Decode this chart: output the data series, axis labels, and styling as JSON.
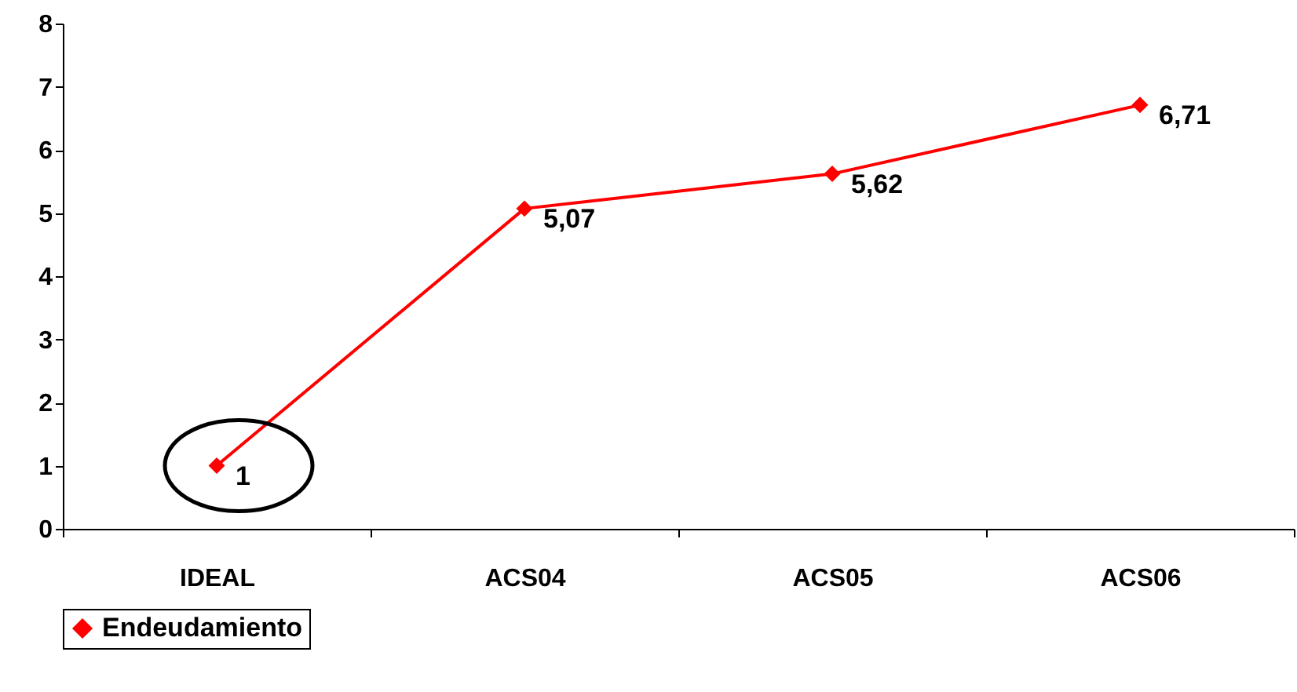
{
  "chart_data": {
    "type": "line",
    "categories": [
      "IDEAL",
      "ACS04",
      "ACS05",
      "ACS06"
    ],
    "series": [
      {
        "name": "Endeudamiento",
        "color": "#ff0000",
        "values": [
          1,
          5.07,
          5.62,
          6.71
        ]
      }
    ],
    "value_labels": [
      "1",
      "5,07",
      "5,62",
      "6,71"
    ],
    "ylim": [
      0,
      8
    ],
    "yticks": [
      0,
      1,
      2,
      3,
      4,
      5,
      6,
      7,
      8
    ],
    "grid": false,
    "legend": "bottom",
    "marker": "diamond",
    "line_style": "solid"
  }
}
